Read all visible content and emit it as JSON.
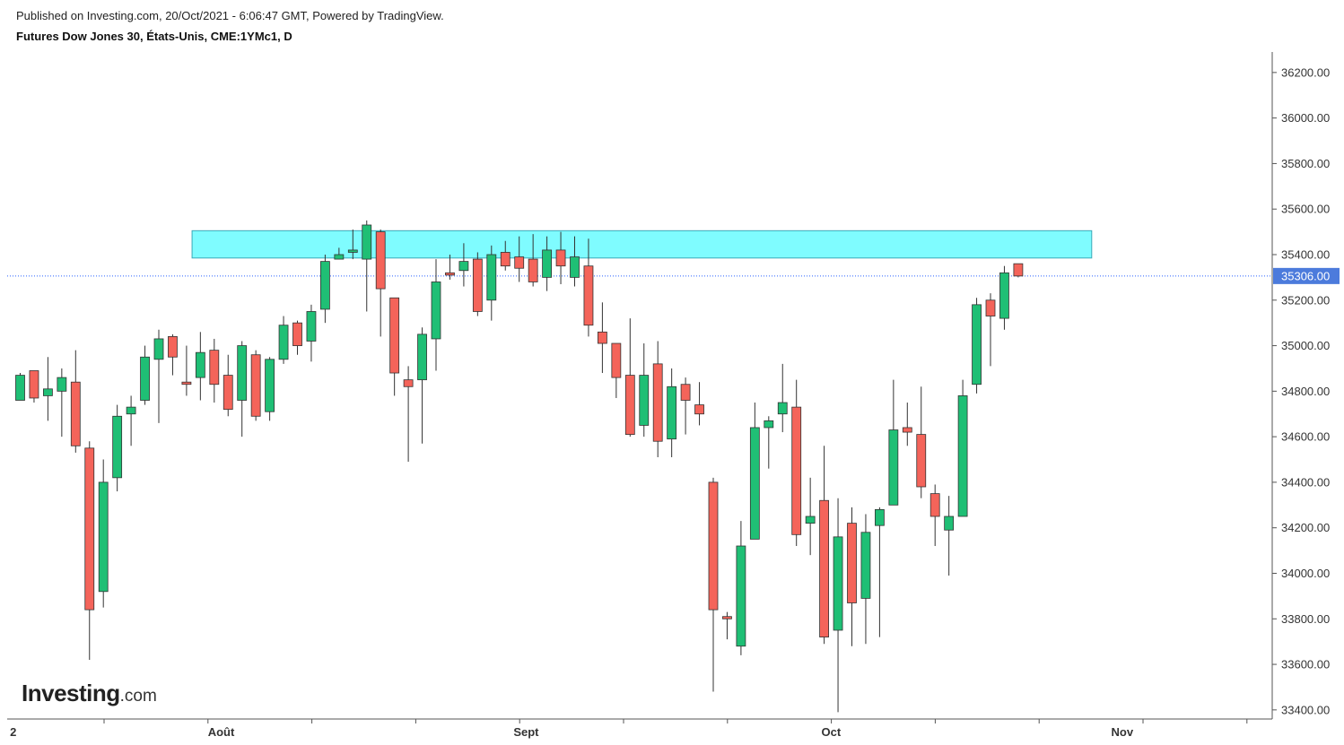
{
  "header": {
    "published": "Published on Investing.com, 20/Oct/2021 - 6:06:47 GMT, Powered by TradingView.",
    "title": "Futures Dow Jones 30, États-Unis, CME:1YMc1, D"
  },
  "logo": {
    "brand": "Investing",
    "suffix": ".com"
  },
  "colors": {
    "up": "#1fbf75",
    "down": "#f4645a",
    "zone": "#7ffcff",
    "price_line": "#2962ff",
    "price_tag": "#4c7bdc"
  },
  "chart_data": {
    "type": "candlestick",
    "title": "Futures Dow Jones 30, États-Unis, CME:1YMc1, D",
    "ylim": [
      33360,
      36290
    ],
    "y_ticks": [
      36200,
      36000,
      35800,
      35600,
      35400,
      35200,
      35000,
      34800,
      34600,
      34400,
      34200,
      34000,
      33800,
      33600,
      33400
    ],
    "x_labels": [
      {
        "label": "2",
        "index": -0.5
      },
      {
        "label": "Août",
        "index": 14.5
      },
      {
        "label": "Sept",
        "index": 36.5
      },
      {
        "label": "Oct",
        "index": 58.5
      },
      {
        "label": "Nov",
        "index": 79.5
      }
    ],
    "current_price": 35306.0,
    "resistance_zone": [
      35385,
      35505
    ],
    "candles": [
      {
        "o": 34760,
        "h": 34880,
        "l": 34760,
        "c": 34870
      },
      {
        "o": 34890,
        "h": 34890,
        "l": 34750,
        "c": 34770
      },
      {
        "o": 34780,
        "h": 34950,
        "l": 34670,
        "c": 34810
      },
      {
        "o": 34800,
        "h": 34900,
        "l": 34600,
        "c": 34860
      },
      {
        "o": 34840,
        "h": 34980,
        "l": 34530,
        "c": 34560
      },
      {
        "o": 34550,
        "h": 34580,
        "l": 33620,
        "c": 33840
      },
      {
        "o": 33920,
        "h": 34500,
        "l": 33850,
        "c": 34400
      },
      {
        "o": 34420,
        "h": 34740,
        "l": 34360,
        "c": 34690
      },
      {
        "o": 34700,
        "h": 34780,
        "l": 34560,
        "c": 34730
      },
      {
        "o": 34760,
        "h": 35000,
        "l": 34740,
        "c": 34950
      },
      {
        "o": 34940,
        "h": 35070,
        "l": 34660,
        "c": 35030
      },
      {
        "o": 35040,
        "h": 35050,
        "l": 34870,
        "c": 34950
      },
      {
        "o": 34840,
        "h": 35000,
        "l": 34780,
        "c": 34830
      },
      {
        "o": 34860,
        "h": 35060,
        "l": 34760,
        "c": 34970
      },
      {
        "o": 34980,
        "h": 35030,
        "l": 34750,
        "c": 34830
      },
      {
        "o": 34870,
        "h": 34960,
        "l": 34690,
        "c": 34720
      },
      {
        "o": 34760,
        "h": 35020,
        "l": 34600,
        "c": 35000
      },
      {
        "o": 34960,
        "h": 34980,
        "l": 34670,
        "c": 34690
      },
      {
        "o": 34710,
        "h": 34950,
        "l": 34670,
        "c": 34940
      },
      {
        "o": 34940,
        "h": 35130,
        "l": 34920,
        "c": 35090
      },
      {
        "o": 35100,
        "h": 35110,
        "l": 34960,
        "c": 35000
      },
      {
        "o": 35020,
        "h": 35180,
        "l": 34930,
        "c": 35150
      },
      {
        "o": 35160,
        "h": 35400,
        "l": 35100,
        "c": 35370
      },
      {
        "o": 35380,
        "h": 35430,
        "l": 35380,
        "c": 35400
      },
      {
        "o": 35410,
        "h": 35510,
        "l": 35380,
        "c": 35420
      },
      {
        "o": 35380,
        "h": 35550,
        "l": 35150,
        "c": 35530
      },
      {
        "o": 35500,
        "h": 35510,
        "l": 35040,
        "c": 35250
      },
      {
        "o": 35210,
        "h": 35210,
        "l": 34780,
        "c": 34880
      },
      {
        "o": 34850,
        "h": 34910,
        "l": 34490,
        "c": 34820
      },
      {
        "o": 34850,
        "h": 35080,
        "l": 34570,
        "c": 35050
      },
      {
        "o": 35030,
        "h": 35380,
        "l": 34890,
        "c": 35280
      },
      {
        "o": 35320,
        "h": 35400,
        "l": 35290,
        "c": 35310
      },
      {
        "o": 35330,
        "h": 35450,
        "l": 35260,
        "c": 35370
      },
      {
        "o": 35380,
        "h": 35410,
        "l": 35130,
        "c": 35150
      },
      {
        "o": 35200,
        "h": 35440,
        "l": 35110,
        "c": 35400
      },
      {
        "o": 35410,
        "h": 35460,
        "l": 35330,
        "c": 35350
      },
      {
        "o": 35390,
        "h": 35480,
        "l": 35280,
        "c": 35340
      },
      {
        "o": 35380,
        "h": 35490,
        "l": 35260,
        "c": 35280
      },
      {
        "o": 35300,
        "h": 35480,
        "l": 35240,
        "c": 35420
      },
      {
        "o": 35420,
        "h": 35500,
        "l": 35270,
        "c": 35350
      },
      {
        "o": 35300,
        "h": 35480,
        "l": 35260,
        "c": 35390
      },
      {
        "o": 35350,
        "h": 35470,
        "l": 35040,
        "c": 35090
      },
      {
        "o": 35060,
        "h": 35190,
        "l": 34880,
        "c": 35010
      },
      {
        "o": 35010,
        "h": 35010,
        "l": 34770,
        "c": 34860
      },
      {
        "o": 34870,
        "h": 35120,
        "l": 34600,
        "c": 34610
      },
      {
        "o": 34650,
        "h": 35010,
        "l": 34600,
        "c": 34870
      },
      {
        "o": 34920,
        "h": 35020,
        "l": 34510,
        "c": 34580
      },
      {
        "o": 34590,
        "h": 34900,
        "l": 34510,
        "c": 34820
      },
      {
        "o": 34830,
        "h": 34860,
        "l": 34610,
        "c": 34760
      },
      {
        "o": 34740,
        "h": 34840,
        "l": 34650,
        "c": 34700
      },
      {
        "o": 34400,
        "h": 34420,
        "l": 33480,
        "c": 33840
      },
      {
        "o": 33810,
        "h": 33830,
        "l": 33710,
        "c": 33800
      },
      {
        "o": 33680,
        "h": 34230,
        "l": 33640,
        "c": 34120
      },
      {
        "o": 34150,
        "h": 34750,
        "l": 34150,
        "c": 34640
      },
      {
        "o": 34640,
        "h": 34690,
        "l": 34460,
        "c": 34670
      },
      {
        "o": 34700,
        "h": 34920,
        "l": 34620,
        "c": 34750
      },
      {
        "o": 34730,
        "h": 34850,
        "l": 34120,
        "c": 34170
      },
      {
        "o": 34220,
        "h": 34420,
        "l": 34080,
        "c": 34250
      },
      {
        "o": 34320,
        "h": 34560,
        "l": 33690,
        "c": 33720
      },
      {
        "o": 33750,
        "h": 34330,
        "l": 33390,
        "c": 34160
      },
      {
        "o": 34220,
        "h": 34290,
        "l": 33680,
        "c": 33870
      },
      {
        "o": 33890,
        "h": 34260,
        "l": 33690,
        "c": 34180
      },
      {
        "o": 34210,
        "h": 34290,
        "l": 33720,
        "c": 34280
      },
      {
        "o": 34300,
        "h": 34850,
        "l": 34300,
        "c": 34630
      },
      {
        "o": 34640,
        "h": 34750,
        "l": 34560,
        "c": 34620
      },
      {
        "o": 34610,
        "h": 34820,
        "l": 34330,
        "c": 34380
      },
      {
        "o": 34350,
        "h": 34390,
        "l": 34120,
        "c": 34250
      },
      {
        "o": 34190,
        "h": 34340,
        "l": 33990,
        "c": 34250
      },
      {
        "o": 34250,
        "h": 34850,
        "l": 34250,
        "c": 34780
      },
      {
        "o": 34830,
        "h": 35210,
        "l": 34790,
        "c": 35180
      },
      {
        "o": 35200,
        "h": 35230,
        "l": 34910,
        "c": 35130
      },
      {
        "o": 35120,
        "h": 35350,
        "l": 35070,
        "c": 35320
      },
      {
        "o": 35360,
        "h": 35360,
        "l": 35300,
        "c": 35306
      }
    ]
  }
}
